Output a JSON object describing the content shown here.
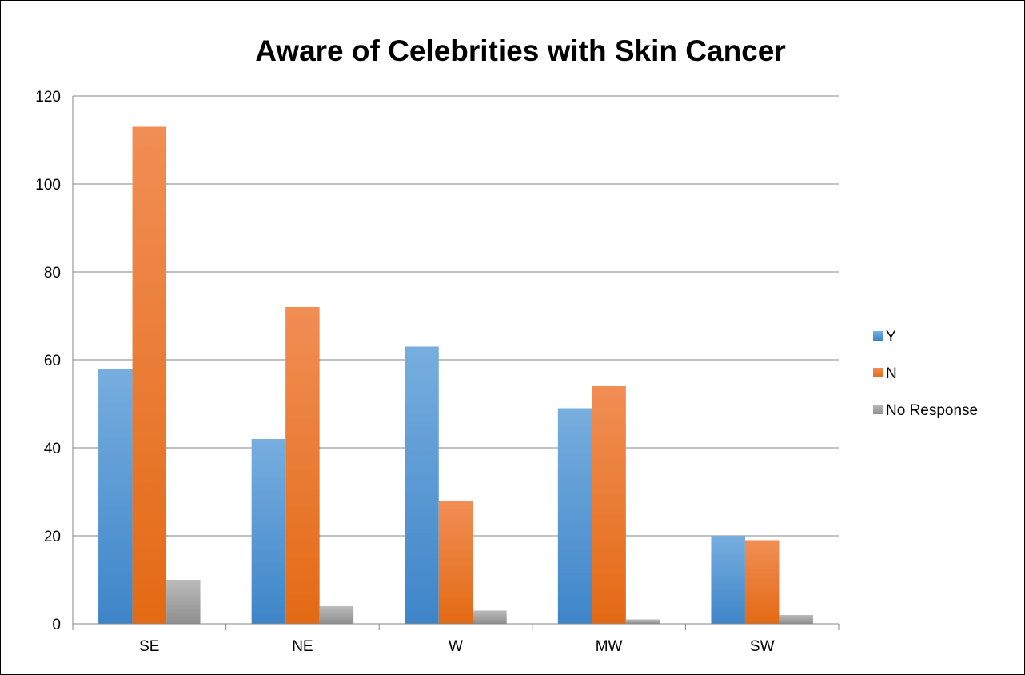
{
  "chart_data": {
    "type": "bar",
    "title": "Aware of Celebrities with Skin Cancer",
    "xlabel": "",
    "ylabel": "",
    "categories": [
      "SE",
      "NE",
      "W",
      "MW",
      "SW"
    ],
    "series": [
      {
        "name": "Y",
        "color": "#5B9BD5",
        "values": [
          58,
          42,
          63,
          49,
          20
        ]
      },
      {
        "name": "N",
        "color": "#ED7D31",
        "values": [
          113,
          72,
          28,
          54,
          19
        ]
      },
      {
        "name": "No Response",
        "color": "#A5A5A5",
        "values": [
          10,
          4,
          3,
          1,
          2
        ]
      }
    ],
    "ylim": [
      0,
      120
    ],
    "yticks": [
      "0",
      "20",
      "40",
      "60",
      "80",
      "100",
      "120"
    ],
    "grid": true,
    "legend": "right"
  }
}
